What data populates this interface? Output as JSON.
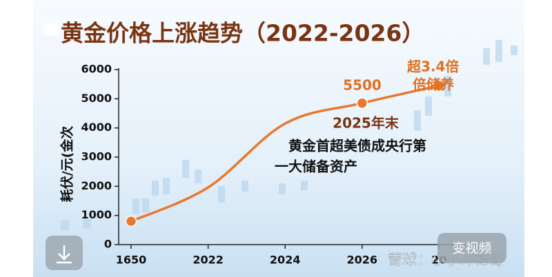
{
  "chart_data": {
    "type": "line",
    "title": "黄金价格上涨趋势（2022-2026）",
    "y_label": "耗伏/元(金次",
    "categories": [
      "1650",
      "2022",
      "2024",
      "2026",
      "20"
    ],
    "series": [
      {
        "name": "黄金价格",
        "color": "#e8782e",
        "values": [
          800,
          1960,
          4150,
          4850,
          5450
        ],
        "markers": [
          true,
          false,
          false,
          true,
          true
        ]
      }
    ],
    "ylim": [
      0,
      6000
    ],
    "yticks": [
      0,
      1000,
      2000,
      3000,
      4000,
      5000,
      6000
    ],
    "annotations": [
      "5500",
      "2025年末",
      "黄金首超美债成央行第",
      "一大储备资产",
      "超3.4倍",
      "倍储养"
    ]
  },
  "ui": {
    "video_button": "变视频",
    "watermark": "雪球：小小冲锋哥"
  }
}
